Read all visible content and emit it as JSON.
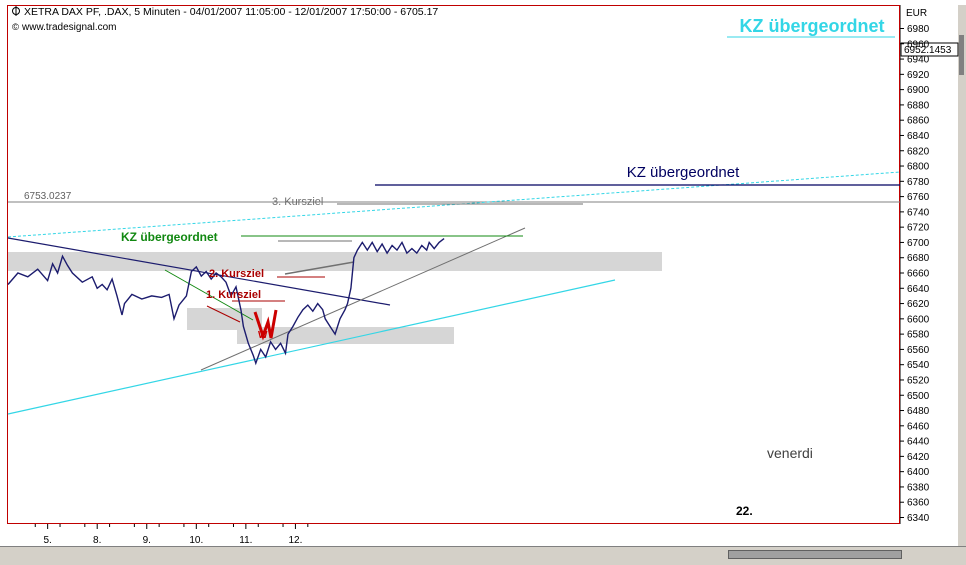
{
  "header": {
    "instrument_line": "XETRA DAX PF, .DAX, 5 Minuten - 04/01/2007 11:05:00 - 12/01/2007 17:50:00 - 6705.17",
    "source": "www.tradesignal.com",
    "title": "KZ übergeordnet"
  },
  "axis": {
    "currency": "EUR",
    "current_price_tag": "6952.1453",
    "hline_label": "6753.0237"
  },
  "annotations": {
    "kz_right": "KZ übergeordnet",
    "kz_left": "KZ übergeordnet",
    "kursziel_3": "3. Kursziel",
    "kursziel_2": "2. Kursziel",
    "kursziel_1": "1. Kursziel",
    "w_mark": "W",
    "venerdi": "venerdi",
    "day_22": "22."
  },
  "colors": {
    "frame": "#c00000",
    "price_line": "#1c1c6e",
    "cyan": "#33d6e6",
    "green": "#118811",
    "dark_red": "#aa0000",
    "navy": "#000060",
    "zone": "#d6d6d6"
  },
  "chart_data": {
    "type": "line",
    "title": "KZ übergeordnet",
    "xlabel": "",
    "ylabel": "EUR",
    "ylim": [
      6330,
      6990
    ],
    "y_ticks": [
      6980,
      6960,
      6940,
      6920,
      6900,
      6880,
      6860,
      6840,
      6820,
      6800,
      6780,
      6760,
      6740,
      6720,
      6700,
      6680,
      6660,
      6640,
      6620,
      6600,
      6580,
      6560,
      6540,
      6520,
      6500,
      6480,
      6460,
      6440,
      6420,
      6400,
      6380,
      6360,
      6340
    ],
    "x_ticks": [
      "5.",
      "8.",
      "9.",
      "10.",
      "11.",
      "12."
    ],
    "x_tick_pos": [
      0.5,
      1.5,
      2.5,
      3.5,
      4.5,
      5.5
    ],
    "xlim": [
      -0.3,
      17.7
    ],
    "series": [
      {
        "points": [
          [
            -0.3,
            6645
          ],
          [
            -0.1,
            6660
          ],
          [
            0.1,
            6655
          ],
          [
            0.3,
            6665
          ],
          [
            0.5,
            6650
          ],
          [
            0.6,
            6672
          ],
          [
            0.7,
            6660
          ],
          [
            0.8,
            6682
          ],
          [
            0.9,
            6670
          ],
          [
            1.0,
            6660
          ],
          [
            1.2,
            6648
          ],
          [
            1.4,
            6655
          ],
          [
            1.5,
            6640
          ],
          [
            1.6,
            6645
          ],
          [
            1.7,
            6638
          ],
          [
            1.8,
            6652
          ],
          [
            1.9,
            6630
          ],
          [
            2.0,
            6605
          ],
          [
            2.05,
            6620
          ],
          [
            2.2,
            6632
          ],
          [
            2.4,
            6626
          ],
          [
            2.6,
            6630
          ],
          [
            2.8,
            6628
          ],
          [
            2.95,
            6632
          ],
          [
            3.05,
            6600
          ],
          [
            3.15,
            6618
          ],
          [
            3.3,
            6630
          ],
          [
            3.4,
            6662
          ],
          [
            3.5,
            6668
          ],
          [
            3.6,
            6656
          ],
          [
            3.7,
            6662
          ],
          [
            3.8,
            6652
          ],
          [
            3.9,
            6660
          ],
          [
            4.0,
            6655
          ],
          [
            4.1,
            6648
          ],
          [
            4.2,
            6630
          ],
          [
            4.3,
            6642
          ],
          [
            4.4,
            6612
          ],
          [
            4.45,
            6590
          ],
          [
            4.55,
            6568
          ],
          [
            4.65,
            6552
          ],
          [
            4.7,
            6542
          ],
          [
            4.8,
            6560
          ],
          [
            4.9,
            6550
          ],
          [
            5.0,
            6570
          ],
          [
            5.1,
            6560
          ],
          [
            5.2,
            6568
          ],
          [
            5.3,
            6555
          ],
          [
            5.35,
            6580
          ],
          [
            5.45,
            6590
          ],
          [
            5.55,
            6602
          ],
          [
            5.65,
            6612
          ],
          [
            5.75,
            6618
          ],
          [
            5.85,
            6610
          ],
          [
            5.95,
            6620
          ],
          [
            6.05,
            6612
          ],
          [
            6.1,
            6600
          ],
          [
            6.2,
            6590
          ],
          [
            6.3,
            6580
          ],
          [
            6.4,
            6600
          ],
          [
            6.5,
            6612
          ],
          [
            6.55,
            6620
          ],
          [
            6.62,
            6640
          ],
          [
            6.65,
            6660
          ],
          [
            6.68,
            6680
          ],
          [
            6.75,
            6690
          ],
          [
            6.85,
            6700
          ],
          [
            6.95,
            6690
          ],
          [
            7.05,
            6700
          ],
          [
            7.15,
            6688
          ],
          [
            7.25,
            6698
          ],
          [
            7.35,
            6686
          ],
          [
            7.45,
            6696
          ],
          [
            7.55,
            6690
          ],
          [
            7.65,
            6700
          ],
          [
            7.75,
            6686
          ],
          [
            7.85,
            6692
          ],
          [
            7.95,
            6686
          ],
          [
            8.05,
            6696
          ],
          [
            8.15,
            6690
          ],
          [
            8.2,
            6700
          ],
          [
            8.3,
            6692
          ],
          [
            8.4,
            6700
          ],
          [
            8.5,
            6705
          ]
        ]
      }
    ],
    "hline_value": 6753.0237
  }
}
